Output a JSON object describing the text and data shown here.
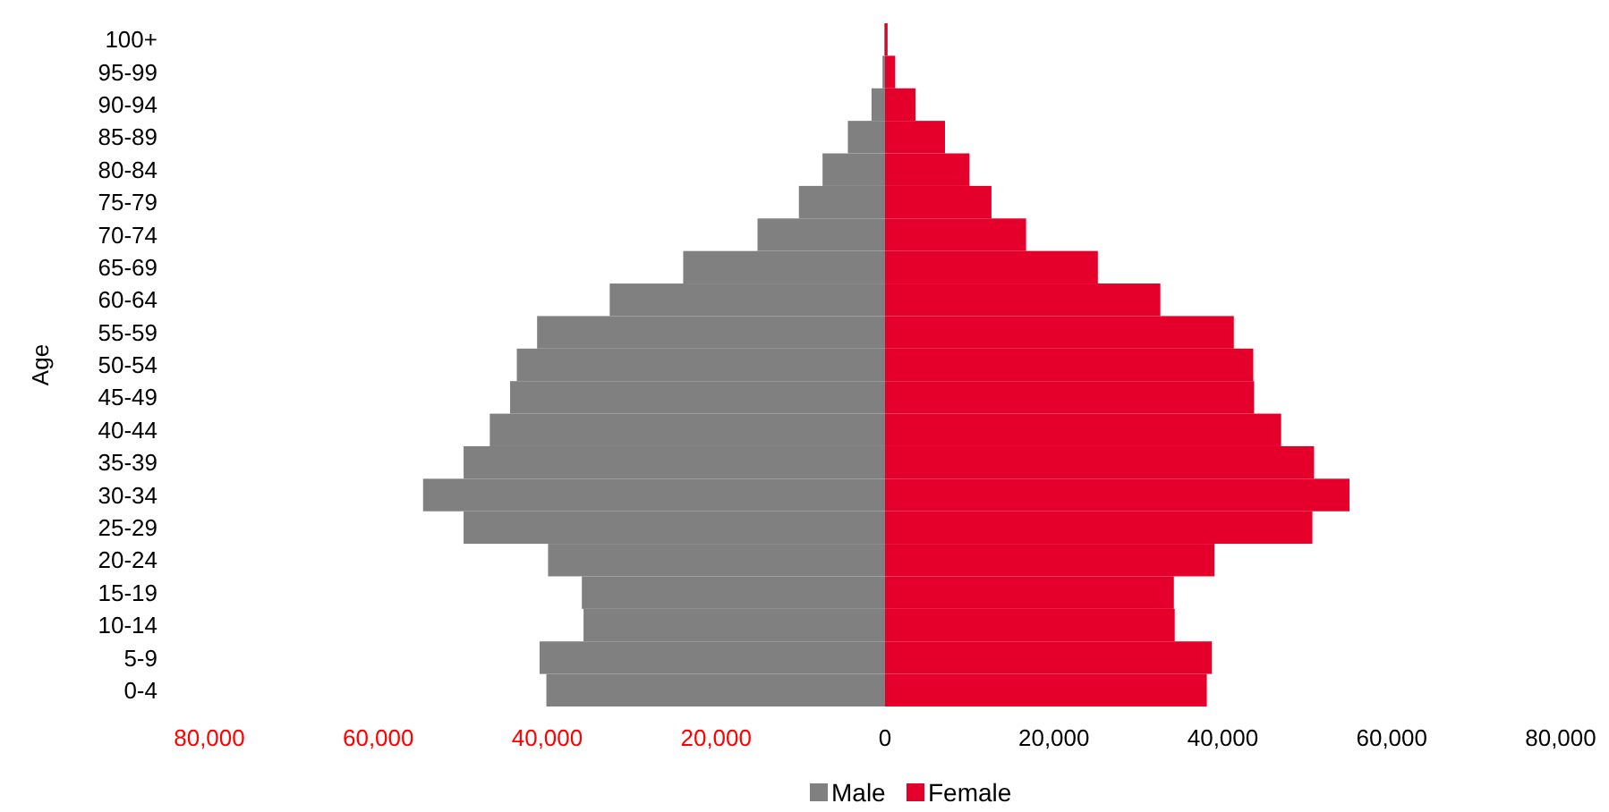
{
  "chart_data": {
    "type": "bar",
    "orientation": "horizontal",
    "ylabel": "Age",
    "categories": [
      "100+",
      "95-99",
      "90-94",
      "85-89",
      "80-84",
      "75-79",
      "70-74",
      "65-69",
      "60-64",
      "55-59",
      "50-54",
      "45-49",
      "40-44",
      "35-39",
      "30-34",
      "25-29",
      "20-24",
      "15-19",
      "10-14",
      "5-9",
      "0-4"
    ],
    "series": [
      {
        "name": "Male",
        "color": "#808080",
        "values": [
          -100,
          -300,
          -1600,
          -4400,
          -7400,
          -10200,
          -15100,
          -23900,
          -32600,
          -41200,
          -43600,
          -44400,
          -46800,
          -49900,
          -54700,
          -49900,
          -39900,
          -35900,
          -35700,
          -40900,
          -40100
        ]
      },
      {
        "name": "Female",
        "color": "#e4002b",
        "values": [
          300,
          1200,
          3600,
          7100,
          10000,
          12600,
          16700,
          25200,
          32600,
          41300,
          43600,
          43700,
          46900,
          50800,
          55000,
          50600,
          39000,
          34200,
          34300,
          38700,
          38100
        ]
      }
    ],
    "xlim": [
      -80000,
      80000
    ],
    "xticks": [
      {
        "value": -80000,
        "label": "80,000"
      },
      {
        "value": -60000,
        "label": "60,000"
      },
      {
        "value": -40000,
        "label": "40,000"
      },
      {
        "value": -20000,
        "label": "20,000"
      },
      0,
      {
        "value": 20000,
        "label": "20,000"
      },
      {
        "value": 40000,
        "label": "40,000"
      },
      {
        "value": 60000,
        "label": "60,000"
      },
      {
        "value": 80000,
        "label": "80,000"
      }
    ],
    "stacked": true,
    "legend": "bottom"
  }
}
